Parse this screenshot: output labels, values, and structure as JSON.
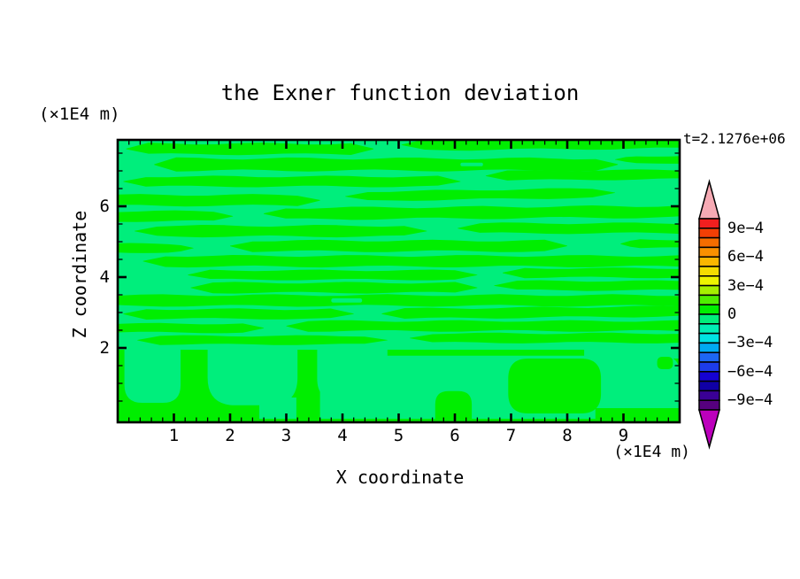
{
  "title": "the Exner function deviation",
  "time_label": "t=2.1276e+06",
  "axes": {
    "x": {
      "label": "X  coordinate",
      "unit": "(×1E4 m)",
      "tick_labels": [
        "1",
        "2",
        "3",
        "4",
        "5",
        "6",
        "7",
        "8",
        "9"
      ],
      "tick_values": [
        1,
        2,
        3,
        4,
        5,
        6,
        7,
        8,
        9
      ],
      "minor_step": 0.2,
      "range": [
        0,
        10
      ]
    },
    "z": {
      "label": "Z  coordinate",
      "unit": "(×1E4 m)",
      "tick_labels": [
        "2",
        "4",
        "6"
      ],
      "tick_values": [
        2,
        4,
        6
      ],
      "minor_step": 0.5,
      "range": [
        -0.1,
        7.875
      ]
    }
  },
  "colorbar": {
    "tick_labels": [
      "9e−4",
      "6e−4",
      "3e−4",
      "0",
      "−3e−4",
      "−6e−4",
      "−9e−4"
    ],
    "segment_colors": [
      "#f11f1f",
      "#f23f05",
      "#f56d00",
      "#f99000",
      "#fbb700",
      "#f5dc00",
      "#eef300",
      "#a6ef00",
      "#4fee00",
      "#00ee00",
      "#00ee7c",
      "#00eeb5",
      "#00e2e2",
      "#00aaf2",
      "#1d66f2",
      "#1d3cea",
      "#1502d2",
      "#1000a6",
      "#3a0096",
      "#56007e"
    ],
    "over_arrow_color": "#f6aab4",
    "under_arrow_color": "#bc00bc",
    "outline_color": "#000000"
  },
  "plot": {
    "frame_color": "#000000",
    "bg_level_color": "#00ee7c",
    "band_color": "#00ee00"
  },
  "chart_data": {
    "type": "heatmap",
    "title": "the Exner function deviation",
    "xlabel": "X coordinate (×1E4 m)",
    "ylabel": "Z coordinate (×1E4 m)",
    "time": "t=2.1276e+06",
    "x_range": [
      0,
      10
    ],
    "z_range": [
      -0.1,
      7.875
    ],
    "contour_interval": 0.0001,
    "colorbar_range": [
      -0.001,
      0.001
    ],
    "legend_position": "right",
    "grid": false,
    "level_colors": {
      "band_-1e-4_to_0": "#00ee7c",
      "band_0_to_1e-4": "#00ee00"
    },
    "field": {
      "description": "Deviation field: mint (-1e-4..0) background with positive (0..1e-4) green streaks aloft and convective columns below z≈2",
      "green_stripes": [
        [
          0.15,
          4.55,
          7.62,
          0.3,
          0
        ],
        [
          5.05,
          10,
          7.76,
          0.3,
          -0.4
        ],
        [
          0.65,
          8.9,
          7.18,
          0.34,
          0
        ],
        [
          8.85,
          10,
          7.32,
          0.2,
          0
        ],
        [
          0.1,
          6.1,
          6.7,
          0.28,
          0
        ],
        [
          6.55,
          10,
          6.88,
          0.26,
          -0.4
        ],
        [
          0,
          3.6,
          6.17,
          0.3,
          0
        ],
        [
          4.05,
          8.85,
          6.33,
          0.26,
          -0.8
        ],
        [
          0,
          2.05,
          5.72,
          0.28,
          0
        ],
        [
          2.6,
          10,
          5.82,
          0.32,
          -0.3
        ],
        [
          0.3,
          5.5,
          5.3,
          0.3,
          0
        ],
        [
          6.05,
          10,
          5.38,
          0.28,
          0
        ],
        [
          0,
          1.35,
          4.82,
          0.24,
          0
        ],
        [
          2.0,
          8.0,
          4.88,
          0.3,
          0
        ],
        [
          8.95,
          10,
          4.94,
          0.24,
          0
        ],
        [
          0.45,
          10,
          4.45,
          0.3,
          0
        ],
        [
          1.25,
          6.4,
          4.06,
          0.26,
          0
        ],
        [
          6.85,
          10,
          4.12,
          0.26,
          0
        ],
        [
          1.3,
          6.4,
          3.7,
          0.28,
          0
        ],
        [
          6.7,
          10,
          3.76,
          0.26,
          0
        ],
        [
          0,
          10,
          3.34,
          0.3,
          0
        ],
        [
          0.1,
          4.2,
          2.96,
          0.27,
          0
        ],
        [
          4.7,
          10,
          3.0,
          0.28,
          -0.5
        ],
        [
          0,
          2.6,
          2.56,
          0.25,
          0
        ],
        [
          3.0,
          10,
          2.62,
          0.28,
          0
        ],
        [
          0.35,
          4.8,
          2.22,
          0.24,
          0
        ],
        [
          5.2,
          10,
          2.28,
          0.26,
          0
        ]
      ],
      "green_band": [
        0,
        10,
        0,
        1.95
      ],
      "mint_shapes": [
        {
          "k": "col",
          "x0": 0.12,
          "x1": 1.12,
          "zb": 0.45,
          "zt": 1.95
        },
        {
          "k": "col",
          "x0": 1.6,
          "x1": 3.2,
          "zb": 0.38,
          "zt": 1.95
        },
        {
          "k": "rect",
          "x0": 2.52,
          "x1": 3.18,
          "zb": 0,
          "zt": 0.6
        },
        {
          "k": "dome",
          "x0": 3.6,
          "x1": 10,
          "zb": 0,
          "zt": 1.78,
          "r": 0.4
        },
        {
          "k": "col",
          "x0": 3.55,
          "x1": 4.8,
          "zb": 0.5,
          "zt": 1.95
        },
        {
          "k": "rect",
          "x0": 8.3,
          "x1": 10,
          "zb": 1.7,
          "zt": 2.1
        }
      ],
      "green_shapes": [
        {
          "k": "round",
          "x0": 6.95,
          "x1": 8.6,
          "zb": 0.15,
          "zt": 1.7,
          "r": 0.45
        },
        {
          "k": "dome",
          "x0": 5.65,
          "x1": 6.3,
          "zb": 0,
          "zt": 0.78,
          "r": 0.3
        },
        {
          "k": "rect",
          "x0": 8.5,
          "x1": 10,
          "zb": 0,
          "zt": 0.3
        },
        {
          "k": "round",
          "x0": 9.6,
          "x1": 9.88,
          "zb": 1.4,
          "zt": 1.75,
          "r": 0.12
        }
      ],
      "mint_holes": [
        {
          "k": "round",
          "x0": 3.8,
          "x1": 4.35,
          "zb": 3.28,
          "zt": 3.4,
          "r": 0.06
        },
        {
          "k": "round",
          "x0": 6.1,
          "x1": 6.5,
          "zb": 7.13,
          "zt": 7.23,
          "r": 0.05
        }
      ]
    }
  }
}
